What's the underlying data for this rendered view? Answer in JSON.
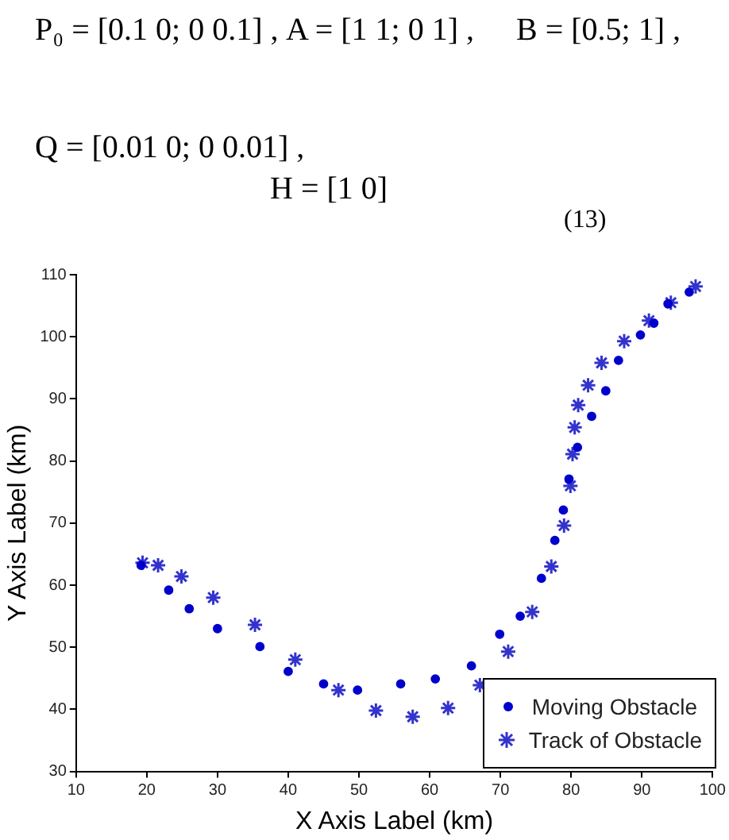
{
  "chart_data": {
    "type": "scatter",
    "annotations": [
      "P₀ = [0.1 0; 0 0.1] ,",
      "A = [1 1; 0 1] ,",
      "B = [0.5; 1] ,",
      "Q = [0.01 0; 0 0.01] ,",
      "H = [1 0]",
      "(13)"
    ],
    "xlabel": "X Axis Label (km)",
    "ylabel": "Y Axis Label (km)",
    "xlim": [
      10,
      100
    ],
    "xticks": [
      10,
      20,
      30,
      40,
      50,
      60,
      70,
      80,
      90,
      100
    ],
    "ylim": [
      30,
      110
    ],
    "yticks": [
      30,
      40,
      50,
      60,
      70,
      80,
      90,
      100,
      110
    ],
    "grid": false,
    "legend": "bottom right",
    "series": [
      {
        "name": "Moving Obstacle",
        "color": "#0000cc",
        "marker": "circle",
        "x": [
          19.2,
          23.1,
          26.0,
          30.0,
          36.0,
          40.0,
          45.0,
          49.8,
          55.9,
          60.8,
          65.9,
          69.9,
          72.8,
          75.8,
          77.7,
          78.9,
          79.7,
          80.9,
          82.9,
          84.9,
          86.7,
          89.8,
          91.7,
          93.7,
          96.7
        ],
        "values": [
          63.2,
          59.2,
          56.2,
          53.0,
          50.1,
          46.1,
          44.1,
          43.1,
          44.1,
          44.9,
          47.0,
          52.1,
          55.0,
          61.1,
          67.2,
          72.1,
          77.1,
          82.2,
          87.2,
          91.3,
          96.2,
          100.3,
          102.2,
          105.3,
          107.2
        ]
      },
      {
        "name": "Track of Obstacle",
        "color": "#3333cc",
        "marker": "cross",
        "x": [
          19.4,
          21.6,
          24.9,
          29.4,
          35.3,
          41.0,
          47.1,
          52.4,
          57.6,
          62.6,
          67.1,
          71.1,
          74.5,
          77.2,
          79.0,
          79.9,
          80.2,
          80.5,
          81.0,
          82.4,
          84.3,
          87.5,
          91.0,
          94.1,
          97.6
        ],
        "values": [
          63.6,
          63.2,
          61.4,
          58.0,
          53.6,
          48.0,
          43.1,
          39.8,
          38.8,
          40.2,
          43.9,
          49.3,
          55.7,
          63.0,
          69.6,
          76.0,
          81.1,
          85.4,
          89.0,
          92.2,
          95.8,
          99.3,
          102.6,
          105.5,
          108.1
        ]
      }
    ]
  }
}
